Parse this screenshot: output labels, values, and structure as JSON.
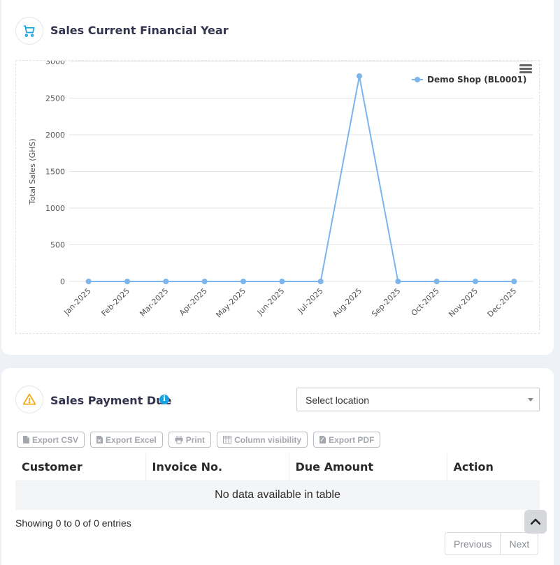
{
  "sales_card": {
    "title": "Sales Current Financial Year",
    "icon": "cart-icon",
    "accent": "#17a2e0"
  },
  "chart_data": {
    "type": "line",
    "title": "",
    "xlabel": "",
    "ylabel": "Total Sales (GHS)",
    "categories": [
      "Jan-2025",
      "Feb-2025",
      "Mar-2025",
      "Apr-2025",
      "May-2025",
      "Jun-2025",
      "Jul-2025",
      "Aug-2025",
      "Sep-2025",
      "Oct-2025",
      "Nov-2025",
      "Dec-2025"
    ],
    "series": [
      {
        "name": "Demo Shop (BL0001)",
        "values": [
          0,
          0,
          0,
          0,
          0,
          0,
          0,
          2800,
          0,
          0,
          0,
          0
        ],
        "color": "#7cb5ec"
      }
    ],
    "ylim": [
      0,
      3000
    ],
    "yticks": [
      "3000",
      "2500",
      "2000",
      "1500",
      "1000",
      "500",
      "0"
    ],
    "grid": true,
    "legend_position": "top-right"
  },
  "due_card": {
    "title": "Sales Payment Due",
    "icon": "warning-icon",
    "info_icon": "info-icon",
    "location_select": "Select location",
    "buttons": [
      {
        "label": "Export CSV",
        "icon": "file-csv-icon"
      },
      {
        "label": "Export Excel",
        "icon": "file-excel-icon"
      },
      {
        "label": "Print",
        "icon": "print-icon"
      },
      {
        "label": "Column visibility",
        "icon": "columns-icon"
      },
      {
        "label": "Export PDF",
        "icon": "file-pdf-icon"
      }
    ],
    "columns": [
      "Customer",
      "Invoice No.",
      "Due Amount",
      "Action"
    ],
    "empty_text": "No data available in table",
    "info_text": "Showing 0 to 0 of 0 entries",
    "prev_label": "Previous",
    "next_label": "Next"
  }
}
